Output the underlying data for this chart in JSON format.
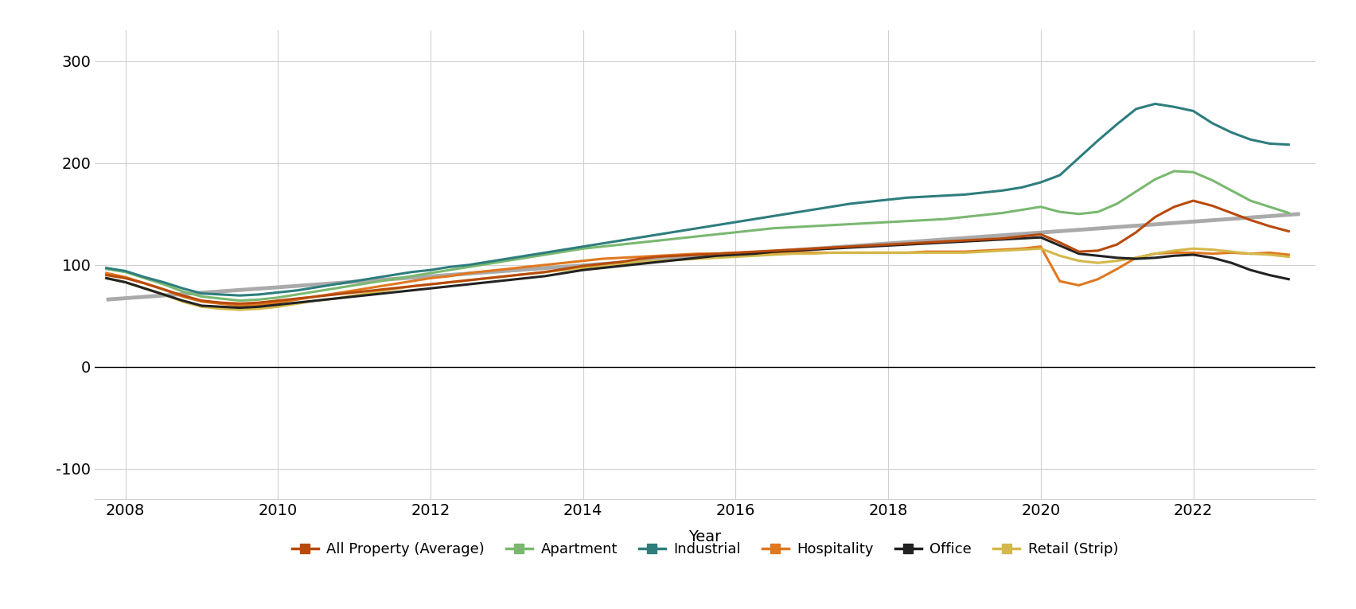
{
  "xlabel": "Year",
  "xlim": [
    2007.6,
    2023.6
  ],
  "ylim": [
    -130,
    330
  ],
  "yticks": [
    -100,
    0,
    100,
    200,
    300
  ],
  "xticks": [
    2008,
    2010,
    2012,
    2014,
    2016,
    2018,
    2020,
    2022
  ],
  "background_color": "#ffffff",
  "grid_color": "#d0d0d0",
  "series": {
    "Trend": {
      "color": "#aaaaaa",
      "linewidth": 3.5,
      "zorder": 1,
      "x": [
        2007.75,
        2023.4
      ],
      "y": [
        66,
        150
      ]
    },
    "All Property (Average)": {
      "color": "#b84a0a",
      "linewidth": 2.2,
      "zorder": 4,
      "x": [
        2007.75,
        2008.0,
        2008.25,
        2008.5,
        2008.75,
        2009.0,
        2009.25,
        2009.5,
        2009.75,
        2010.0,
        2010.25,
        2010.5,
        2010.75,
        2011.0,
        2011.25,
        2011.5,
        2011.75,
        2012.0,
        2012.25,
        2012.5,
        2012.75,
        2013.0,
        2013.25,
        2013.5,
        2013.75,
        2014.0,
        2014.25,
        2014.5,
        2014.75,
        2015.0,
        2015.25,
        2015.5,
        2015.75,
        2016.0,
        2016.25,
        2016.5,
        2016.75,
        2017.0,
        2017.25,
        2017.5,
        2017.75,
        2018.0,
        2018.25,
        2018.5,
        2018.75,
        2019.0,
        2019.25,
        2019.5,
        2019.75,
        2020.0,
        2020.25,
        2020.5,
        2020.75,
        2021.0,
        2021.25,
        2021.5,
        2021.75,
        2022.0,
        2022.25,
        2022.5,
        2022.75,
        2023.0,
        2023.25
      ],
      "y": [
        90,
        87,
        82,
        76,
        70,
        65,
        63,
        62,
        63,
        65,
        67,
        69,
        71,
        73,
        75,
        77,
        79,
        81,
        83,
        85,
        87,
        89,
        91,
        93,
        96,
        99,
        101,
        103,
        106,
        108,
        109,
        110,
        111,
        112,
        113,
        114,
        115,
        116,
        117,
        118,
        119,
        120,
        121,
        122,
        123,
        124,
        125,
        126,
        128,
        130,
        122,
        113,
        114,
        120,
        132,
        147,
        157,
        163,
        158,
        151,
        144,
        138,
        133
      ]
    },
    "Apartment": {
      "color": "#7ab870",
      "linewidth": 2.2,
      "zorder": 3,
      "x": [
        2007.75,
        2008.0,
        2008.25,
        2008.5,
        2008.75,
        2009.0,
        2009.25,
        2009.5,
        2009.75,
        2010.0,
        2010.25,
        2010.5,
        2010.75,
        2011.0,
        2011.25,
        2011.5,
        2011.75,
        2012.0,
        2012.25,
        2012.5,
        2012.75,
        2013.0,
        2013.25,
        2013.5,
        2013.75,
        2014.0,
        2014.25,
        2014.5,
        2014.75,
        2015.0,
        2015.25,
        2015.5,
        2015.75,
        2016.0,
        2016.25,
        2016.5,
        2016.75,
        2017.0,
        2017.25,
        2017.5,
        2017.75,
        2018.0,
        2018.25,
        2018.5,
        2018.75,
        2019.0,
        2019.25,
        2019.5,
        2019.75,
        2020.0,
        2020.25,
        2020.5,
        2020.75,
        2021.0,
        2021.25,
        2021.5,
        2021.75,
        2022.0,
        2022.25,
        2022.5,
        2022.75,
        2023.0,
        2023.25
      ],
      "y": [
        96,
        93,
        87,
        81,
        74,
        69,
        67,
        65,
        66,
        68,
        71,
        74,
        77,
        80,
        83,
        86,
        89,
        92,
        95,
        98,
        101,
        104,
        107,
        110,
        113,
        116,
        118,
        120,
        122,
        124,
        126,
        128,
        130,
        132,
        134,
        136,
        137,
        138,
        139,
        140,
        141,
        142,
        143,
        144,
        145,
        147,
        149,
        151,
        154,
        157,
        152,
        150,
        152,
        160,
        172,
        184,
        192,
        191,
        183,
        173,
        163,
        157,
        151
      ]
    },
    "Industrial": {
      "color": "#2e7d7d",
      "linewidth": 2.2,
      "zorder": 5,
      "x": [
        2007.75,
        2008.0,
        2008.25,
        2008.5,
        2008.75,
        2009.0,
        2009.25,
        2009.5,
        2009.75,
        2010.0,
        2010.25,
        2010.5,
        2010.75,
        2011.0,
        2011.25,
        2011.5,
        2011.75,
        2012.0,
        2012.25,
        2012.5,
        2012.75,
        2013.0,
        2013.25,
        2013.5,
        2013.75,
        2014.0,
        2014.25,
        2014.5,
        2014.75,
        2015.0,
        2015.25,
        2015.5,
        2015.75,
        2016.0,
        2016.25,
        2016.5,
        2016.75,
        2017.0,
        2017.25,
        2017.5,
        2017.75,
        2018.0,
        2018.25,
        2018.5,
        2018.75,
        2019.0,
        2019.25,
        2019.5,
        2019.75,
        2020.0,
        2020.25,
        2020.5,
        2020.75,
        2021.0,
        2021.25,
        2021.5,
        2021.75,
        2022.0,
        2022.25,
        2022.5,
        2022.75,
        2023.0,
        2023.25
      ],
      "y": [
        97,
        94,
        88,
        83,
        77,
        72,
        71,
        70,
        71,
        73,
        75,
        78,
        81,
        84,
        87,
        90,
        93,
        95,
        98,
        100,
        103,
        106,
        109,
        112,
        115,
        118,
        121,
        124,
        127,
        130,
        133,
        136,
        139,
        142,
        145,
        148,
        151,
        154,
        157,
        160,
        162,
        164,
        166,
        167,
        168,
        169,
        171,
        173,
        176,
        181,
        188,
        205,
        222,
        238,
        253,
        258,
        255,
        251,
        239,
        230,
        223,
        219,
        218
      ]
    },
    "Hospitality": {
      "color": "#e07820",
      "linewidth": 2.2,
      "zorder": 2,
      "x": [
        2007.75,
        2008.0,
        2008.25,
        2008.5,
        2008.75,
        2009.0,
        2009.25,
        2009.5,
        2009.75,
        2010.0,
        2010.25,
        2010.5,
        2010.75,
        2011.0,
        2011.25,
        2011.5,
        2011.75,
        2012.0,
        2012.25,
        2012.5,
        2012.75,
        2013.0,
        2013.25,
        2013.5,
        2013.75,
        2014.0,
        2014.25,
        2014.5,
        2014.75,
        2015.0,
        2015.25,
        2015.5,
        2015.75,
        2016.0,
        2016.25,
        2016.5,
        2016.75,
        2017.0,
        2017.25,
        2017.5,
        2017.75,
        2018.0,
        2018.25,
        2018.5,
        2018.75,
        2019.0,
        2019.25,
        2019.5,
        2019.75,
        2020.0,
        2020.25,
        2020.5,
        2020.75,
        2021.0,
        2021.25,
        2021.5,
        2021.75,
        2022.0,
        2022.25,
        2022.5,
        2022.75,
        2023.0,
        2023.25
      ],
      "y": [
        92,
        88,
        82,
        76,
        69,
        64,
        62,
        60,
        61,
        63,
        66,
        69,
        72,
        75,
        78,
        81,
        84,
        87,
        89,
        92,
        94,
        96,
        98,
        100,
        102,
        104,
        106,
        107,
        108,
        109,
        110,
        111,
        111,
        112,
        112,
        112,
        112,
        112,
        112,
        112,
        112,
        112,
        112,
        113,
        113,
        113,
        114,
        115,
        116,
        118,
        84,
        80,
        86,
        96,
        107,
        111,
        112,
        112,
        111,
        112,
        111,
        112,
        110
      ]
    },
    "Office": {
      "color": "#222222",
      "linewidth": 2.2,
      "zorder": 4,
      "x": [
        2007.75,
        2008.0,
        2008.25,
        2008.5,
        2008.75,
        2009.0,
        2009.25,
        2009.5,
        2009.75,
        2010.0,
        2010.25,
        2010.5,
        2010.75,
        2011.0,
        2011.25,
        2011.5,
        2011.75,
        2012.0,
        2012.25,
        2012.5,
        2012.75,
        2013.0,
        2013.25,
        2013.5,
        2013.75,
        2014.0,
        2014.25,
        2014.5,
        2014.75,
        2015.0,
        2015.25,
        2015.5,
        2015.75,
        2016.0,
        2016.25,
        2016.5,
        2016.75,
        2017.0,
        2017.25,
        2017.5,
        2017.75,
        2018.0,
        2018.25,
        2018.5,
        2018.75,
        2019.0,
        2019.25,
        2019.5,
        2019.75,
        2020.0,
        2020.25,
        2020.5,
        2020.75,
        2021.0,
        2021.25,
        2021.5,
        2021.75,
        2022.0,
        2022.25,
        2022.5,
        2022.75,
        2023.0,
        2023.25
      ],
      "y": [
        87,
        83,
        77,
        71,
        65,
        60,
        59,
        58,
        59,
        61,
        63,
        65,
        67,
        69,
        71,
        73,
        75,
        77,
        79,
        81,
        83,
        85,
        87,
        89,
        92,
        95,
        97,
        99,
        101,
        103,
        105,
        107,
        109,
        110,
        111,
        113,
        114,
        115,
        116,
        117,
        118,
        119,
        120,
        121,
        122,
        123,
        124,
        125,
        126,
        127,
        119,
        111,
        109,
        107,
        106,
        107,
        109,
        110,
        107,
        102,
        95,
        90,
        86
      ]
    },
    "Retail (Strip)": {
      "color": "#d4b84a",
      "linewidth": 2.2,
      "zorder": 3,
      "x": [
        2007.75,
        2008.0,
        2008.25,
        2008.5,
        2008.75,
        2009.0,
        2009.25,
        2009.5,
        2009.75,
        2010.0,
        2010.25,
        2010.5,
        2010.75,
        2011.0,
        2011.25,
        2011.5,
        2011.75,
        2012.0,
        2012.25,
        2012.5,
        2012.75,
        2013.0,
        2013.25,
        2013.5,
        2013.75,
        2014.0,
        2014.25,
        2014.5,
        2014.75,
        2015.0,
        2015.25,
        2015.5,
        2015.75,
        2016.0,
        2016.25,
        2016.5,
        2016.75,
        2017.0,
        2017.25,
        2017.5,
        2017.75,
        2018.0,
        2018.25,
        2018.5,
        2018.75,
        2019.0,
        2019.25,
        2019.5,
        2019.75,
        2020.0,
        2020.25,
        2020.5,
        2020.75,
        2021.0,
        2021.25,
        2021.5,
        2021.75,
        2022.0,
        2022.25,
        2022.5,
        2022.75,
        2023.0,
        2023.25
      ],
      "y": [
        87,
        83,
        77,
        71,
        64,
        59,
        57,
        56,
        57,
        59,
        62,
        65,
        67,
        70,
        73,
        76,
        79,
        81,
        83,
        85,
        87,
        89,
        91,
        93,
        95,
        97,
        99,
        101,
        103,
        104,
        105,
        106,
        107,
        108,
        109,
        110,
        111,
        111,
        112,
        112,
        112,
        112,
        112,
        112,
        112,
        112,
        113,
        114,
        115,
        116,
        109,
        104,
        102,
        104,
        107,
        111,
        114,
        116,
        115,
        113,
        111,
        110,
        108
      ]
    }
  },
  "legend_entries": [
    "All Property (Average)",
    "Apartment",
    "Industrial",
    "Hospitality",
    "Office",
    "Retail (Strip)"
  ],
  "legend_colors": [
    "#b84a0a",
    "#7ab870",
    "#2e7d7d",
    "#e07820",
    "#222222",
    "#d4b84a"
  ],
  "legend_fontsize": 13,
  "axis_label_fontsize": 14,
  "tick_fontsize": 14
}
